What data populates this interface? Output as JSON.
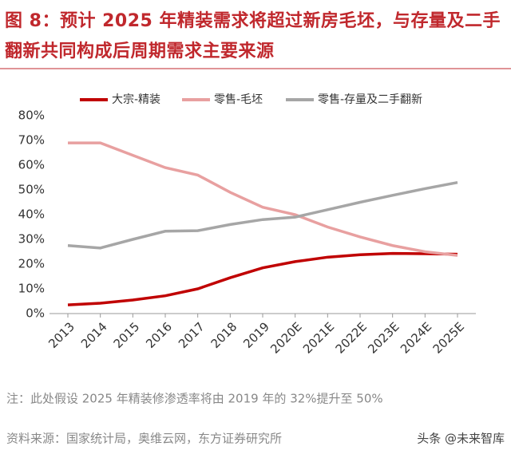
{
  "chart_data": {
    "type": "line",
    "title": "图 8：预计 2025 年精装需求将超过新房毛坯，与存量及二手翻新共同构成后周期需求主要来源",
    "categories": [
      "2013",
      "2014",
      "2015",
      "2016",
      "2017",
      "2018",
      "2019",
      "2020E",
      "2021E",
      "2022E",
      "2023E",
      "2024E",
      "2025E"
    ],
    "series": [
      {
        "name": "大宗-精装",
        "color": "#c00000",
        "values": [
          3.5,
          4.2,
          5.5,
          7.2,
          10,
          14.5,
          18.5,
          21,
          22.8,
          23.8,
          24.3,
          24.2,
          24
        ]
      },
      {
        "name": "零售-毛坯",
        "color": "#e8a0a0",
        "values": [
          69,
          69,
          64,
          59,
          56,
          49,
          43,
          40,
          35,
          31,
          27.5,
          25,
          23.5
        ]
      },
      {
        "name": "零售-存量及二手翻新",
        "color": "#a6a6a6",
        "values": [
          27.5,
          26.5,
          30,
          33.3,
          33.5,
          36,
          38,
          39,
          42,
          45,
          47.8,
          50.5,
          53
        ]
      }
    ],
    "ylim": [
      0,
      80
    ],
    "yticks": [
      {
        "value": 0,
        "label": "0%"
      },
      {
        "value": 10,
        "label": "10%"
      },
      {
        "value": 20,
        "label": "20%"
      },
      {
        "value": 30,
        "label": "30%"
      },
      {
        "value": 40,
        "label": "40%"
      },
      {
        "value": 50,
        "label": "50%"
      },
      {
        "value": 60,
        "label": "60%"
      },
      {
        "value": 70,
        "label": "70%"
      },
      {
        "value": 80,
        "label": "80%"
      }
    ],
    "legend": "top",
    "note": "注：此处假设 2025 年精装修渗透率将由 2019 年的 32%提升至 50%",
    "source": "资料来源：国家统计局，奥维云网，东方证券研究所"
  },
  "watermark": "头条 @未来智库"
}
